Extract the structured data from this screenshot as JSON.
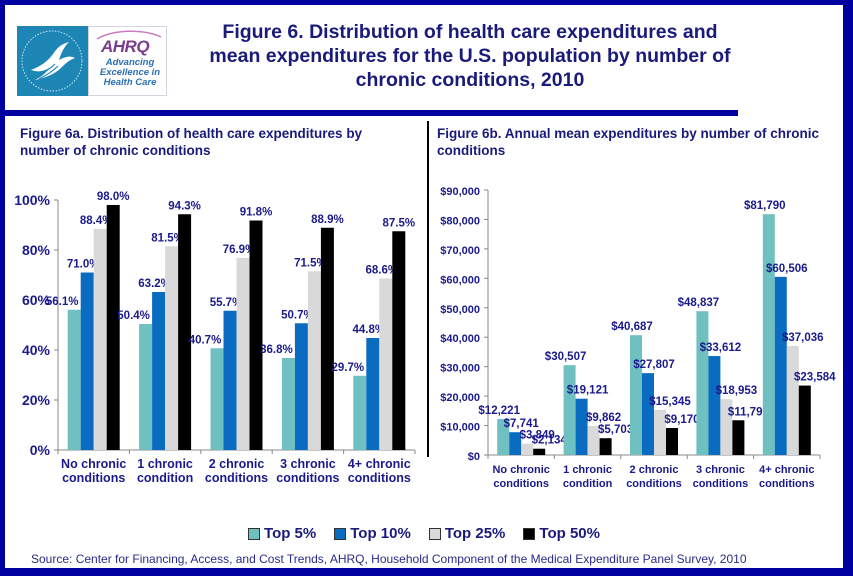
{
  "header": {
    "title_lines": [
      "Figure 6. Distribution of health care expenditures and",
      "mean expenditures for the U.S. population by number of",
      "chronic conditions, 2010"
    ],
    "logo": {
      "agency_word": "AHRQ",
      "tagline_lines": [
        "Advancing",
        "Excellence in",
        "Health Care"
      ]
    }
  },
  "colors": {
    "frame": "#0000a0",
    "title_text": "#1a1a7a",
    "top5": "#6fc0c0",
    "top10": "#0a6cc0",
    "top25": "#d9d9d9",
    "top50": "#000000"
  },
  "legend": {
    "items": [
      {
        "label": "Top 5%",
        "color": "#6fc0c0"
      },
      {
        "label": "Top 10%",
        "color": "#0a6cc0"
      },
      {
        "label": "Top 25%",
        "color": "#d9d9d9"
      },
      {
        "label": "Top 50%",
        "color": "#000000"
      }
    ]
  },
  "source": "Source: Center for Financing, Access, and Cost Trends, AHRQ, Household Component of the Medical Expenditure Panel Survey,  2010",
  "chart_data": [
    {
      "type": "bar",
      "title_lines": [
        "Figure 6a. Distribution  of health care expenditures by",
        "number of chronic conditions"
      ],
      "categories": [
        [
          "No chronic",
          "conditions"
        ],
        [
          "1 chronic",
          "condition"
        ],
        [
          "2 chronic",
          "conditions"
        ],
        [
          "3 chronic",
          "conditions"
        ],
        [
          "4+ chronic",
          "conditions"
        ]
      ],
      "series": [
        {
          "name": "Top 5%",
          "values": [
            56.1,
            50.4,
            40.7,
            36.8,
            29.7
          ],
          "labels": [
            "56.1%",
            "50.4%",
            "40.7%",
            "36.8%",
            "29.7%"
          ]
        },
        {
          "name": "Top 10%",
          "values": [
            71.0,
            63.2,
            55.7,
            50.7,
            44.8
          ],
          "labels": [
            "71.0%",
            "63.2%",
            "55.7%",
            "50.7%",
            "44.8%"
          ]
        },
        {
          "name": "Top 25%",
          "values": [
            88.4,
            81.5,
            76.9,
            71.5,
            68.6
          ],
          "labels": [
            "88.4%",
            "81.5%",
            "76.9%",
            "71.5%",
            "68.6%"
          ]
        },
        {
          "name": "Top 50%",
          "values": [
            98.0,
            94.3,
            91.8,
            88.9,
            87.5
          ],
          "labels": [
            "98.0%",
            "94.3%",
            "91.8%",
            "88.9%",
            "87.5%"
          ]
        }
      ],
      "ylim": [
        0,
        100
      ],
      "yticks": [
        "0%",
        "20%",
        "40%",
        "60%",
        "80%",
        "100%"
      ],
      "xlabel": "",
      "ylabel": "",
      "grid": false,
      "legend": "bottom"
    },
    {
      "type": "bar",
      "title_lines": [
        "Figure 6b. Annual mean expenditures by number of chronic",
        "conditions"
      ],
      "categories": [
        [
          "No chronic",
          "conditions"
        ],
        [
          "1 chronic",
          "condition"
        ],
        [
          "2 chronic",
          "conditions"
        ],
        [
          "3 chronic",
          "conditions"
        ],
        [
          "4+ chronic",
          "conditions"
        ]
      ],
      "series": [
        {
          "name": "Top 5%",
          "values": [
            12221,
            30507,
            40687,
            48837,
            81790
          ],
          "labels": [
            "$12,221",
            "$30,507",
            "$40,687",
            "$48,837",
            "$81,790"
          ]
        },
        {
          "name": "Top 10%",
          "values": [
            7741,
            19121,
            27807,
            33612,
            60506
          ],
          "labels": [
            "$7,741",
            "$19,121",
            "$27,807",
            "$33,612",
            "$60,506"
          ]
        },
        {
          "name": "Top 25%",
          "values": [
            3849,
            9862,
            15345,
            18953,
            37036
          ],
          "labels": [
            "$3,849",
            "$9,862",
            "$15,345",
            "$18,953",
            "$37,036"
          ]
        },
        {
          "name": "Top 50%",
          "values": [
            2134,
            5703,
            9170,
            11791,
            23584
          ],
          "labels": [
            "$2,134",
            "$5,703",
            "$9,170",
            "$11,791",
            "$23,584"
          ]
        }
      ],
      "ylim": [
        0,
        90000
      ],
      "yticks": [
        "$0",
        "$10,000",
        "$20,000",
        "$30,000",
        "$40,000",
        "$50,000",
        "$60,000",
        "$70,000",
        "$80,000",
        "$90,000"
      ],
      "xlabel": "",
      "ylabel": "",
      "grid": false,
      "legend": "bottom"
    }
  ]
}
